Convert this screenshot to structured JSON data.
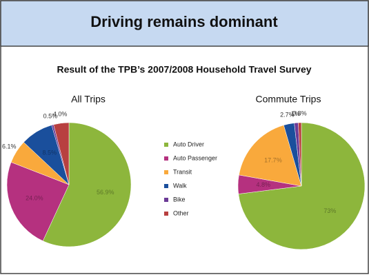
{
  "title": "Driving remains dominant",
  "subtitle": "Result of the TPB’s 2007/2008 Household Travel Survey",
  "chart_data": [
    {
      "type": "pie",
      "title": "All Trips",
      "categories": [
        "Auto Driver",
        "Auto Passenger",
        "Transit",
        "Walk",
        "Bike",
        "Other"
      ],
      "colors": [
        "#8db63c",
        "#b5317f",
        "#f9a93c",
        "#1a4f9c",
        "#6b3a96",
        "#b84040"
      ],
      "values": [
        56.9,
        24.0,
        6.1,
        8.5,
        0.5,
        4.0
      ],
      "value_labels": [
        "56.9%",
        "24.0%",
        "6.1%",
        "8.5%",
        "0.5%",
        "4.0%"
      ]
    },
    {
      "type": "pie",
      "title": "Commute Trips",
      "categories": [
        "Auto Driver",
        "Auto Passenger",
        "Transit",
        "Walk",
        "Bike",
        "Other"
      ],
      "colors": [
        "#8db63c",
        "#b5317f",
        "#f9a93c",
        "#1a4f9c",
        "#6b3a96",
        "#b84040"
      ],
      "values": [
        73,
        4.8,
        17.7,
        2.7,
        1,
        0.8
      ],
      "value_labels": [
        "73%",
        "4.8%",
        "17.7%",
        "2.7%",
        "1%",
        "0.8%"
      ]
    }
  ]
}
